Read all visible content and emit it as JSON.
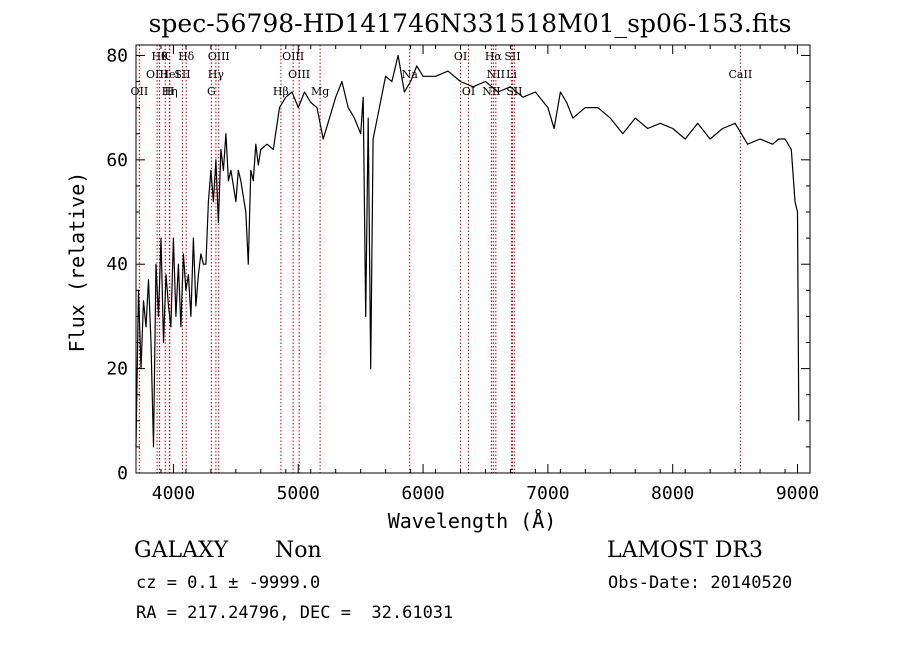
{
  "chart_data": {
    "type": "line",
    "title": "spec-56798-HD141746N331518M01_sp06-153.fits",
    "xlabel": "Wavelength (Å)",
    "ylabel": "Flux (relative)",
    "xlim": [
      3700,
      9100
    ],
    "ylim": [
      0,
      82
    ],
    "xticks": [
      4000,
      5000,
      6000,
      7000,
      8000,
      9000
    ],
    "yticks": [
      0,
      20,
      40,
      60,
      80
    ],
    "grid": false,
    "line_color": "#000000",
    "marker_color": "#cc0000",
    "series": [
      {
        "x": [
          3700,
          3720,
          3740,
          3760,
          3780,
          3800,
          3820,
          3840,
          3860,
          3880,
          3900,
          3920,
          3940,
          3960,
          3980,
          4000,
          4020,
          4040,
          4060,
          4080,
          4100,
          4120,
          4140,
          4160,
          4180,
          4200,
          4220,
          4240,
          4260,
          4280,
          4300,
          4320,
          4340,
          4360,
          4380,
          4400,
          4420,
          4440,
          4460,
          4480,
          4500,
          4520,
          4540,
          4560,
          4580,
          4600,
          4620,
          4640,
          4660,
          4680,
          4700,
          4750,
          4800,
          4850,
          4900,
          4950,
          5000,
          5050,
          5100,
          5150,
          5200,
          5250,
          5300,
          5350,
          5400,
          5450,
          5500,
          5520,
          5540,
          5560,
          5580,
          5600,
          5650,
          5700,
          5750,
          5800,
          5850,
          5900,
          5950,
          6000,
          6100,
          6200,
          6300,
          6400,
          6500,
          6600,
          6700,
          6800,
          6900,
          7000,
          7050,
          7100,
          7150,
          7200,
          7300,
          7400,
          7500,
          7600,
          7700,
          7800,
          7900,
          8000,
          8100,
          8200,
          8300,
          8400,
          8500,
          8600,
          8700,
          8800,
          8850,
          8900,
          8950,
          8980,
          9000,
          9010
        ],
        "y": [
          5,
          35,
          20,
          33,
          28,
          37,
          25,
          5,
          40,
          30,
          45,
          25,
          38,
          32,
          28,
          45,
          30,
          40,
          28,
          42,
          35,
          38,
          30,
          45,
          32,
          38,
          42,
          40,
          40,
          52,
          58,
          52,
          60,
          48,
          62,
          58,
          65,
          56,
          58,
          55,
          52,
          58,
          56,
          53,
          50,
          40,
          58,
          56,
          63,
          59,
          62,
          63,
          62,
          70,
          72,
          73,
          70,
          73,
          71,
          70,
          64,
          68,
          72,
          75,
          70,
          68,
          65,
          72,
          30,
          68,
          20,
          64,
          70,
          76,
          75,
          80,
          73,
          75,
          78,
          76,
          76,
          77,
          75,
          74,
          75,
          73,
          74,
          72,
          73,
          70,
          66,
          73,
          71,
          68,
          70,
          70,
          68,
          65,
          68,
          66,
          67,
          66,
          64,
          67,
          64,
          66,
          67,
          63,
          64,
          63,
          64,
          64,
          62,
          52,
          50,
          10
        ]
      }
    ],
    "spectral_lines": [
      {
        "label": "OII",
        "x": 3727,
        "row": 2
      },
      {
        "label": "OIII",
        "x": 3869,
        "row": 1
      },
      {
        "label": "Hθ",
        "x": 3889,
        "row": 0
      },
      {
        "label": "HeI",
        "x": 3970,
        "row": 1
      },
      {
        "label": "Hη",
        "x": 3970,
        "row": 2
      },
      {
        "label": "K",
        "x": 3934,
        "row": 0
      },
      {
        "label": "H",
        "x": 3968,
        "row": 2
      },
      {
        "label": "Hδ",
        "x": 4102,
        "row": 0
      },
      {
        "label": "SII",
        "x": 4072,
        "row": 1
      },
      {
        "label": "OIII",
        "x": 4363,
        "row": 0
      },
      {
        "label": "Hγ",
        "x": 4340,
        "row": 1
      },
      {
        "label": "G",
        "x": 4304,
        "row": 2
      },
      {
        "label": "Hβ",
        "x": 4861,
        "row": 3
      },
      {
        "label": "OIII",
        "x": 4959,
        "row": 0
      },
      {
        "label": "OIII",
        "x": 5007,
        "row": 1
      },
      {
        "label": "Mg",
        "x": 5175,
        "row": 3
      },
      {
        "label": "Na",
        "x": 5893,
        "row": 1
      },
      {
        "label": "OI",
        "x": 6300,
        "row": 0
      },
      {
        "label": "OI",
        "x": 6364,
        "row": 3
      },
      {
        "label": "Hα",
        "x": 6563,
        "row": 0
      },
      {
        "label": "SII",
        "x": 6716,
        "row": 0
      },
      {
        "label": "NII",
        "x": 6583,
        "row": 1
      },
      {
        "label": "Li",
        "x": 6708,
        "row": 1
      },
      {
        "label": "NII",
        "x": 6548,
        "row": 3
      },
      {
        "label": "SII",
        "x": 6731,
        "row": 3
      },
      {
        "label": "CaII",
        "x": 8542,
        "row": 1
      }
    ]
  },
  "info": {
    "object_class": "GALAXY",
    "subclass": "Non",
    "survey": "LAMOST DR3",
    "cz_line": "cz = 0.1 ± -9999.0",
    "obs_date_line": "Obs-Date: 20140520",
    "radec_line": "RA = 217.24796, DEC =  32.61031"
  }
}
